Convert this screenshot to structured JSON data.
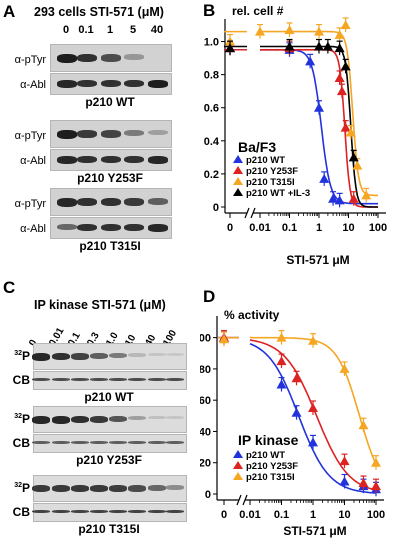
{
  "panels": {
    "A": {
      "letter": "A",
      "header": "293 cells STI-571 (μM)",
      "concentrations": [
        "0",
        "0.1",
        "1",
        "5",
        "40"
      ],
      "row_labels": {
        "ptyr": "α-pTyr",
        "abl": "α-Abl"
      },
      "blots": [
        {
          "caption": "p210 WT",
          "ptyr_intensity": [
            0.95,
            0.85,
            0.7,
            0.3,
            0.0
          ],
          "abl_intensity": [
            0.9,
            0.85,
            0.85,
            0.85,
            0.95
          ]
        },
        {
          "caption": "p210 Y253F",
          "ptyr_intensity": [
            0.95,
            0.8,
            0.75,
            0.45,
            0.25
          ],
          "abl_intensity": [
            0.9,
            0.85,
            0.85,
            0.85,
            0.9
          ]
        },
        {
          "caption": "p210 T315I",
          "ptyr_intensity": [
            0.9,
            0.85,
            0.85,
            0.8,
            0.6
          ],
          "abl_intensity": [
            0.55,
            0.85,
            0.85,
            0.85,
            0.9
          ]
        }
      ]
    },
    "C": {
      "letter": "C",
      "header": "IP kinase STI-571 (μM)",
      "concentrations": [
        "0",
        "0.01",
        "0.1",
        "0.3",
        "1.0",
        "10",
        "40",
        "100"
      ],
      "row_labels": {
        "p32": "P",
        "p32_sup": "32",
        "cb": "CB"
      },
      "blots": [
        {
          "caption": "p210 WT",
          "p32_intensity": [
            0.9,
            0.85,
            0.75,
            0.6,
            0.45,
            0.12,
            0.05,
            0.03
          ],
          "cb_intensity": [
            0.7,
            0.7,
            0.7,
            0.7,
            0.7,
            0.7,
            0.7,
            0.7
          ]
        },
        {
          "caption": "p210 Y253F",
          "p32_intensity": [
            0.9,
            0.9,
            0.85,
            0.8,
            0.65,
            0.25,
            0.08,
            0.05
          ],
          "cb_intensity": [
            0.6,
            0.6,
            0.6,
            0.6,
            0.6,
            0.6,
            0.6,
            0.6
          ]
        },
        {
          "caption": "p210 T315I",
          "p32_intensity": [
            0.8,
            0.8,
            0.8,
            0.8,
            0.78,
            0.7,
            0.55,
            0.35
          ],
          "cb_intensity": [
            0.75,
            0.75,
            0.75,
            0.75,
            0.75,
            0.75,
            0.75,
            0.75
          ]
        }
      ]
    }
  },
  "chart_data": [
    {
      "panel_letter": "B",
      "type": "line",
      "ylabel": "rel. cell #",
      "xlabel": "STI-571 μM",
      "log_x": true,
      "x_ticks": [
        "0",
        "0.01",
        "0.1",
        "1",
        "10",
        "100"
      ],
      "y_ticks": [
        "0",
        "0.2",
        "0.4",
        "0.6",
        "0.8",
        "1.0"
      ],
      "ylim": [
        0,
        1.1
      ],
      "legend_title": "Ba/F3",
      "legend_position": "lower-left",
      "series": [
        {
          "name": "p210 WT",
          "color": "#2233dd",
          "points": [
            {
              "x": 0,
              "y": 0.96
            },
            {
              "x": 0.1,
              "y": 0.95
            },
            {
              "x": 0.5,
              "y": 0.88
            },
            {
              "x": 1,
              "y": 0.6
            },
            {
              "x": 1.5,
              "y": 0.17
            },
            {
              "x": 3,
              "y": 0.05
            },
            {
              "x": 5,
              "y": 0.04
            }
          ]
        },
        {
          "name": "p210 Y253F",
          "color": "#dd2222",
          "points": [
            {
              "x": 0,
              "y": 0.96
            },
            {
              "x": 0.1,
              "y": 0.96
            },
            {
              "x": 5,
              "y": 0.78
            },
            {
              "x": 6,
              "y": 0.7
            },
            {
              "x": 8,
              "y": 0.48
            },
            {
              "x": 15,
              "y": 0.05
            }
          ]
        },
        {
          "name": "p210 T315I",
          "color": "#f5a623",
          "points": [
            {
              "x": 0,
              "y": 1.0
            },
            {
              "x": 0.01,
              "y": 1.06
            },
            {
              "x": 0.1,
              "y": 1.07
            },
            {
              "x": 1,
              "y": 1.06
            },
            {
              "x": 5,
              "y": 1.04
            },
            {
              "x": 8,
              "y": 1.1
            },
            {
              "x": 12,
              "y": 0.45
            },
            {
              "x": 20,
              "y": 0.25
            },
            {
              "x": 40,
              "y": 0.07
            }
          ]
        },
        {
          "name": "p210 WT +IL-3",
          "color": "#000000",
          "points": [
            {
              "x": 0,
              "y": 0.96
            },
            {
              "x": 0.1,
              "y": 0.97
            },
            {
              "x": 1,
              "y": 0.97
            },
            {
              "x": 2,
              "y": 0.97
            },
            {
              "x": 5,
              "y": 0.96
            },
            {
              "x": 8,
              "y": 0.85
            },
            {
              "x": 15,
              "y": 0.3
            }
          ]
        }
      ],
      "fits": [
        {
          "color": "#2233dd",
          "top": 0.95,
          "bottom": 0.02,
          "ic50": 1.2,
          "hill": 2.8
        },
        {
          "color": "#dd2222",
          "top": 0.95,
          "bottom": 0.0,
          "ic50": 7.5,
          "hill": 5
        },
        {
          "color": "#f5a623",
          "top": 1.06,
          "bottom": 0.07,
          "ic50": 14,
          "hill": 4.5
        },
        {
          "color": "#000000",
          "top": 0.97,
          "bottom": 0.0,
          "ic50": 12,
          "hill": 5
        }
      ]
    },
    {
      "panel_letter": "D",
      "type": "line",
      "ylabel": "% activity",
      "xlabel": "STI-571 μM",
      "log_x": true,
      "x_ticks": [
        "0",
        "0.01",
        "0.1",
        "1",
        "10",
        "100"
      ],
      "y_ticks": [
        "0",
        "20",
        "40",
        "60",
        "80",
        "100"
      ],
      "ylim": [
        0,
        110
      ],
      "legend_title": "IP kinase",
      "legend_position": "lower-left",
      "series": [
        {
          "name": "p210 WT",
          "color": "#2233dd",
          "points": [
            {
              "x": 0,
              "y": 100
            },
            {
              "x": 0.1,
              "y": 70
            },
            {
              "x": 0.3,
              "y": 52
            },
            {
              "x": 1,
              "y": 33
            },
            {
              "x": 10,
              "y": 8
            },
            {
              "x": 40,
              "y": 5
            },
            {
              "x": 100,
              "y": 3
            }
          ]
        },
        {
          "name": "p210 Y253F",
          "color": "#dd2222",
          "points": [
            {
              "x": 0,
              "y": 100
            },
            {
              "x": 0.1,
              "y": 85
            },
            {
              "x": 0.3,
              "y": 74
            },
            {
              "x": 1,
              "y": 55
            },
            {
              "x": 10,
              "y": 21
            },
            {
              "x": 40,
              "y": 7
            },
            {
              "x": 100,
              "y": 5
            }
          ]
        },
        {
          "name": "p210 T315I",
          "color": "#f5a623",
          "points": [
            {
              "x": 0,
              "y": 99
            },
            {
              "x": 0.1,
              "y": 100
            },
            {
              "x": 1,
              "y": 98
            },
            {
              "x": 10,
              "y": 80
            },
            {
              "x": 40,
              "y": 44
            },
            {
              "x": 100,
              "y": 20
            }
          ]
        }
      ],
      "fits": [
        {
          "color": "#2233dd",
          "top": 100,
          "bottom": 0,
          "ic50": 0.35,
          "hill": 0.9
        },
        {
          "color": "#dd2222",
          "top": 100,
          "bottom": 0,
          "ic50": 1.3,
          "hill": 0.85
        },
        {
          "color": "#f5a623",
          "top": 100,
          "bottom": 0,
          "ic50": 30,
          "hill": 1.2
        }
      ]
    }
  ]
}
